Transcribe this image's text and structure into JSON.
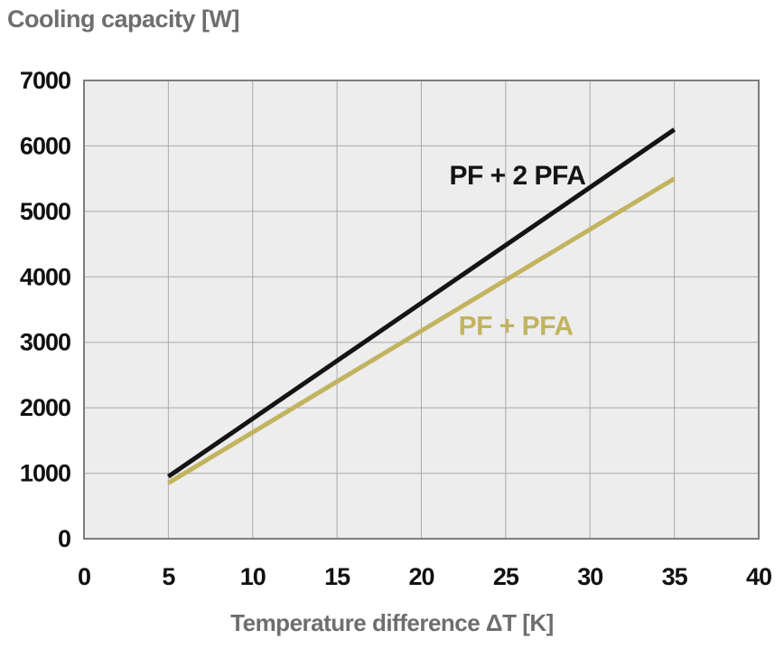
{
  "title": "Cooling capacity [W]",
  "chart_data": {
    "type": "line",
    "title": "Cooling capacity [W]",
    "xlabel": "Temperature difference ΔT [K]",
    "ylabel": "Cooling capacity [W]",
    "xlim": [
      0,
      40
    ],
    "ylim": [
      0,
      7000
    ],
    "xticks": [
      0,
      5,
      10,
      15,
      20,
      25,
      30,
      35,
      40
    ],
    "yticks": [
      0,
      1000,
      2000,
      3000,
      4000,
      5000,
      6000,
      7000
    ],
    "grid": true,
    "legend_position": "inline-annotations",
    "series": [
      {
        "name": "PF + 2 PFA",
        "color": "#141414",
        "points": [
          [
            5,
            950
          ],
          [
            35,
            6250
          ]
        ],
        "label": {
          "x": 25.7,
          "y": 5550
        }
      },
      {
        "name": "PF + PFA",
        "color": "#c2b35f",
        "points": [
          [
            5,
            850
          ],
          [
            35,
            5500
          ]
        ],
        "label": {
          "x": 25.6,
          "y": 3250
        }
      }
    ],
    "colors": {
      "plot_bg": "#ededed",
      "grid": "#a9a9a9",
      "border": "#7d7d7d",
      "axis_text": "#111111",
      "title_text": "#6e6e6e"
    }
  }
}
